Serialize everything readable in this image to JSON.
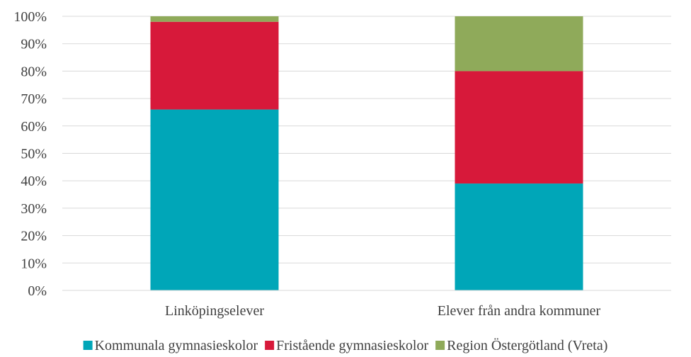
{
  "chart_data": {
    "type": "bar",
    "stacked": true,
    "percent_scale": true,
    "title": "",
    "xlabel": "",
    "ylabel": "",
    "categories": [
      "Linköpingselever",
      "Elever från andra kommuner"
    ],
    "series": [
      {
        "name": "Kommunala gymnasieskolor",
        "color": "#00A6B8",
        "values": [
          66,
          39
        ]
      },
      {
        "name": "Fristående gymnasieskolor",
        "color": "#D7193A",
        "values": [
          32,
          41
        ]
      },
      {
        "name": "Region Östergötland (Vreta)",
        "color": "#8FAA5A",
        "values": [
          2,
          20
        ]
      }
    ],
    "ylim": [
      0,
      100
    ],
    "y_ticks": [
      "0%",
      "10%",
      "20%",
      "30%",
      "40%",
      "50%",
      "60%",
      "70%",
      "80%",
      "90%",
      "100%"
    ],
    "grid": true,
    "legend_position": "bottom"
  }
}
